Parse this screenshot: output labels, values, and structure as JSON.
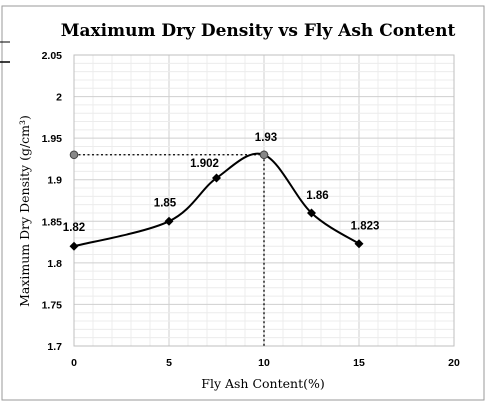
{
  "chart_data": {
    "type": "line",
    "title": "Maximum Dry Density vs Fly Ash Content",
    "xlabel": "Fly Ash Content(%)",
    "ylabel": "Maximum Dry Density (g/cm³)",
    "xlim": [
      0,
      20
    ],
    "ylim": [
      1.7,
      2.05
    ],
    "xticks": [
      0,
      5,
      10,
      15,
      20
    ],
    "yticks": [
      1.7,
      1.75,
      1.8,
      1.85,
      1.9,
      1.95,
      2,
      2.05
    ],
    "xtick_labels": [
      "0",
      "5",
      "10",
      "15",
      "20"
    ],
    "ytick_labels": [
      "1.7",
      "1.75",
      "1.8",
      "1.85",
      "1.9",
      "1.95",
      "2",
      "2.05"
    ],
    "grid": true,
    "smooth": true,
    "series": [
      {
        "x": [
          0,
          5,
          7.5,
          10,
          12.5,
          15
        ],
        "y": [
          1.82,
          1.85,
          1.902,
          1.93,
          1.86,
          1.823
        ],
        "labels": [
          "1.82",
          "1.85",
          "1.902",
          "1.93",
          "1.86",
          "1.823"
        ],
        "color": "#000000",
        "marker": "diamond"
      }
    ],
    "reference_point": {
      "x": 0,
      "y": 1.93,
      "color": "#888888"
    },
    "guide_lines": {
      "x": 10,
      "y": 1.93,
      "style": "dotted"
    }
  }
}
